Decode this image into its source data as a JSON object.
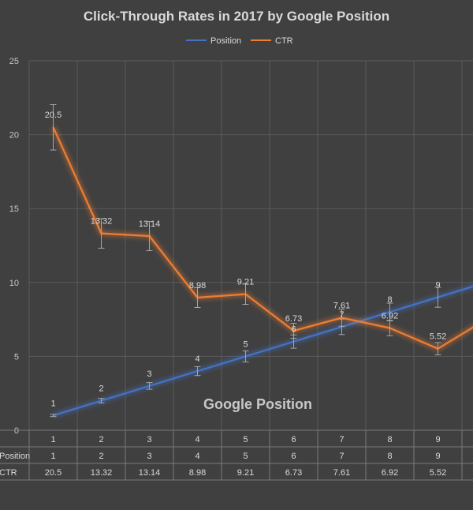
{
  "chart_data": {
    "type": "line",
    "title": "Click-Through Rates in 2017 by Google Position",
    "xlabel": "Google Position",
    "ylabel": "",
    "ylim": [
      0,
      25
    ],
    "yticks": [
      0,
      5,
      10,
      15,
      20,
      25
    ],
    "categories": [
      "1",
      "2",
      "3",
      "4",
      "5",
      "6",
      "7",
      "8",
      "9"
    ],
    "grid": true,
    "legend_position": "top",
    "error_bars": true,
    "series": [
      {
        "name": "Position",
        "color": "#4472c4",
        "values": [
          1,
          2,
          3,
          4,
          5,
          6,
          7,
          8,
          9
        ],
        "partial_next": 10
      },
      {
        "name": "CTR",
        "color": "#ed7d31",
        "values": [
          20.5,
          13.32,
          13.14,
          8.98,
          9.21,
          6.73,
          7.61,
          6.92,
          5.52
        ],
        "partial_next": 7.5
      }
    ],
    "table": {
      "header": [
        "1",
        "2",
        "3",
        "4",
        "5",
        "6",
        "7",
        "8",
        "9"
      ],
      "rows": [
        {
          "label": "Position",
          "values": [
            "1",
            "2",
            "3",
            "4",
            "5",
            "6",
            "7",
            "8",
            "9"
          ]
        },
        {
          "label": "CTR",
          "values": [
            "20.5",
            "13.32",
            "13.14",
            "8.98",
            "9.21",
            "6.73",
            "7.61",
            "6.92",
            "5.52"
          ]
        }
      ]
    }
  }
}
